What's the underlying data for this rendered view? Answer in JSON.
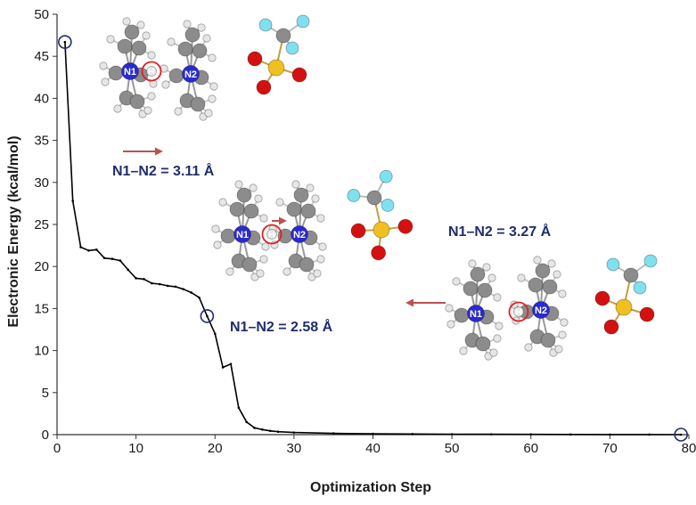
{
  "chart_data": {
    "type": "line",
    "xlabel": "Optimization Step",
    "ylabel": "Electronic Energy (kcal/mol)",
    "xlim": [
      0,
      80
    ],
    "ylim": [
      0,
      50
    ],
    "xticks": [
      "0",
      "10",
      "20",
      "30",
      "40",
      "50",
      "60",
      "70",
      "80"
    ],
    "yticks": [
      "0",
      "5",
      "10",
      "15",
      "20",
      "25",
      "30",
      "35",
      "40",
      "45",
      "50"
    ],
    "grid": false,
    "legend": "none",
    "line_color": "#000000",
    "highlight_color": "#1f2d6b",
    "series": [
      {
        "x": [
          1,
          2,
          3,
          4,
          5,
          6,
          7,
          8,
          9,
          10,
          11,
          12,
          13,
          14,
          15,
          16,
          17,
          18,
          19,
          20,
          21,
          22,
          23,
          24,
          25,
          26,
          27,
          28,
          30,
          35,
          40,
          45,
          50,
          55,
          60,
          65,
          70,
          75,
          79
        ],
        "y": [
          46.7,
          27.8,
          22.3,
          21.9,
          22.0,
          21.0,
          20.9,
          20.7,
          19.6,
          18.6,
          18.5,
          18.0,
          17.9,
          17.7,
          17.6,
          17.3,
          16.9,
          16.3,
          14.1,
          12.0,
          8.0,
          8.4,
          3.2,
          1.5,
          0.8,
          0.6,
          0.45,
          0.35,
          0.25,
          0.15,
          0.1,
          0.07,
          0.05,
          0.04,
          0.03,
          0.02,
          0.01,
          0.01,
          0.0
        ]
      }
    ],
    "highlighted_points": [
      {
        "x": 1,
        "y": 46.7
      },
      {
        "x": 19,
        "y": 14.1
      },
      {
        "x": 79,
        "y": 0.0
      }
    ],
    "annotations": [
      "N1–N2 = 3.11 Å",
      "N1–N2 = 2.58 Å",
      "N1–N2 = 3.27 Å"
    ],
    "atom_labels": {
      "n1": "N1",
      "n2": "N2",
      "h": "H"
    },
    "colors": {
      "carbon": "#8c8c8c",
      "hydrogen": "#e6e6e6",
      "nitrogen": "#2a2ad0",
      "fluorine": "#7fe0f0",
      "oxygen": "#d41010",
      "sulfur": "#f0c020",
      "arrow": "#c0504d",
      "proton_ring": "#e02020"
    }
  }
}
